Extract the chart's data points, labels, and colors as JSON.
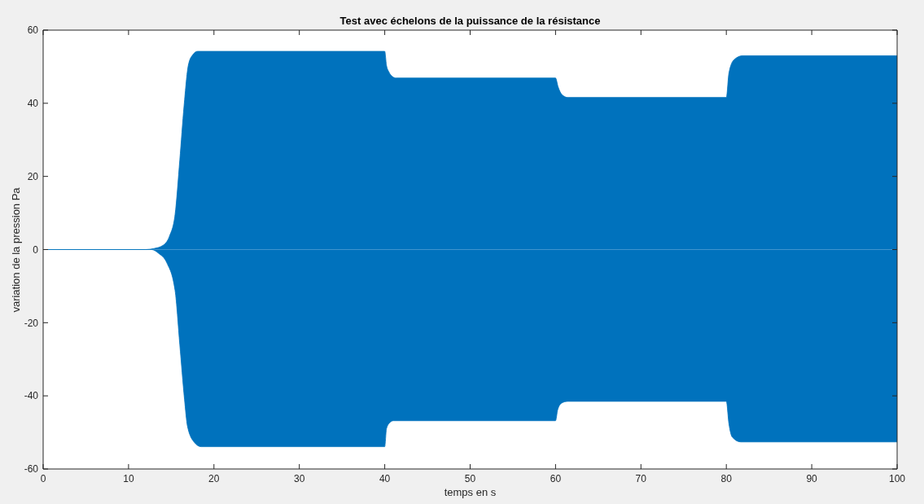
{
  "chart_data": {
    "type": "area",
    "title": "Test avec échelons de la puissance de la résistance",
    "xlabel": "temps en s",
    "ylabel": "variation de la pression Pa",
    "xlim": [
      0,
      100
    ],
    "xticks": [
      0,
      10,
      20,
      30,
      40,
      50,
      60,
      70,
      80,
      90,
      100
    ],
    "ylim": [
      -60,
      60
    ],
    "yticks": [
      -60,
      -40,
      -20,
      0,
      20,
      40,
      60
    ],
    "series": [
      {
        "color": "#0072bd",
        "x": [
          0,
          12,
          13,
          14,
          14.8,
          15.45,
          16,
          16.5,
          17,
          17.5,
          18.1,
          40,
          40.2,
          40.5,
          40.9,
          41.3,
          60,
          60.3,
          60.7,
          61.4,
          80,
          80.3,
          80.9,
          81.9,
          100
        ],
        "values": [
          0,
          0,
          0.3,
          1.1,
          3.7,
          9.6,
          24.5,
          39.3,
          50.4,
          53.2,
          54.2,
          54.2,
          50.4,
          48.5,
          47.3,
          46.9,
          46.9,
          44.5,
          42.5,
          41.6,
          41.6,
          48.2,
          51.9,
          53,
          53
        ]
      },
      {
        "color": "#0072bd",
        "x": [
          0,
          12.7,
          13.5,
          14.5,
          15.45,
          16,
          16.55,
          16.9,
          17.7,
          18.5,
          40,
          40.2,
          40.6,
          41,
          60,
          60.25,
          60.7,
          61.4,
          80,
          80.3,
          80.7,
          81.7,
          100
        ],
        "values": [
          0,
          0,
          -1,
          -3.7,
          -11.2,
          -26,
          -40.9,
          -48.3,
          -52.7,
          -53.9,
          -53.9,
          -49,
          -47.3,
          -46.8,
          -46.8,
          -43.8,
          -42,
          -41.5,
          -41.5,
          -47.6,
          -51.3,
          -52.6,
          -52.6
        ]
      }
    ]
  }
}
